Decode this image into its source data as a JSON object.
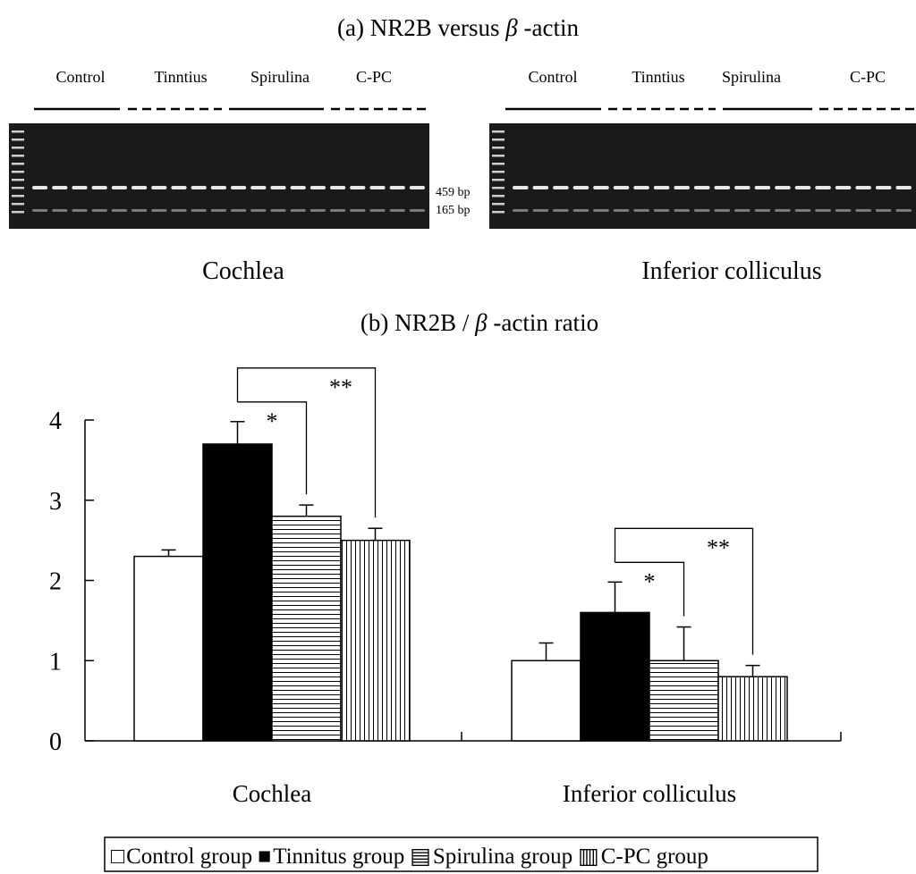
{
  "panel_a": {
    "title_prefix": "(a) NR2B versus ",
    "title_symbol": "β",
    "title_suffix": " -actin",
    "band_labels": [
      "459 bp",
      "165 bp"
    ],
    "gels": [
      {
        "tissue": "Cochlea",
        "groups": [
          "Control",
          "Tinntius",
          "Spirulina",
          "C-PC"
        ]
      },
      {
        "tissue": "Inferior colliculus",
        "groups": [
          "Control",
          "Tinntius",
          "Spirulina",
          "C-PC"
        ]
      }
    ]
  },
  "panel_b": {
    "title_prefix": "(b) NR2B / ",
    "title_symbol": "β",
    "title_suffix": " -actin ratio",
    "significance": [
      "*",
      "**"
    ]
  },
  "legend_symbols": [
    "□",
    "■",
    "▤",
    "▥"
  ],
  "colors": {
    "background": "#ffffff",
    "ink": "#000000",
    "gel": "#1a1a1a",
    "band": "#f2f2f2"
  },
  "chart_data": {
    "type": "bar",
    "categories": [
      "Cochlea",
      "Inferior colliculus"
    ],
    "series": [
      {
        "name": "Control group",
        "fill": "open",
        "values": [
          2.3,
          1.0
        ],
        "errors": [
          0.08,
          0.22
        ]
      },
      {
        "name": "Tinnitus group",
        "fill": "solid",
        "values": [
          3.7,
          1.6
        ],
        "errors": [
          0.28,
          0.38
        ]
      },
      {
        "name": "Spirulina group",
        "fill": "horizontal-lines",
        "values": [
          2.8,
          1.0
        ],
        "errors": [
          0.14,
          0.42
        ]
      },
      {
        "name": "C-PC group",
        "fill": "vertical-lines",
        "values": [
          2.5,
          0.8
        ],
        "errors": [
          0.15,
          0.14
        ]
      }
    ],
    "y_ticks": [
      0,
      1,
      2,
      3,
      4
    ],
    "ylim": [
      0,
      4
    ],
    "grid": false,
    "legend_position": "bottom",
    "xlabel": "",
    "ylabel": ""
  }
}
